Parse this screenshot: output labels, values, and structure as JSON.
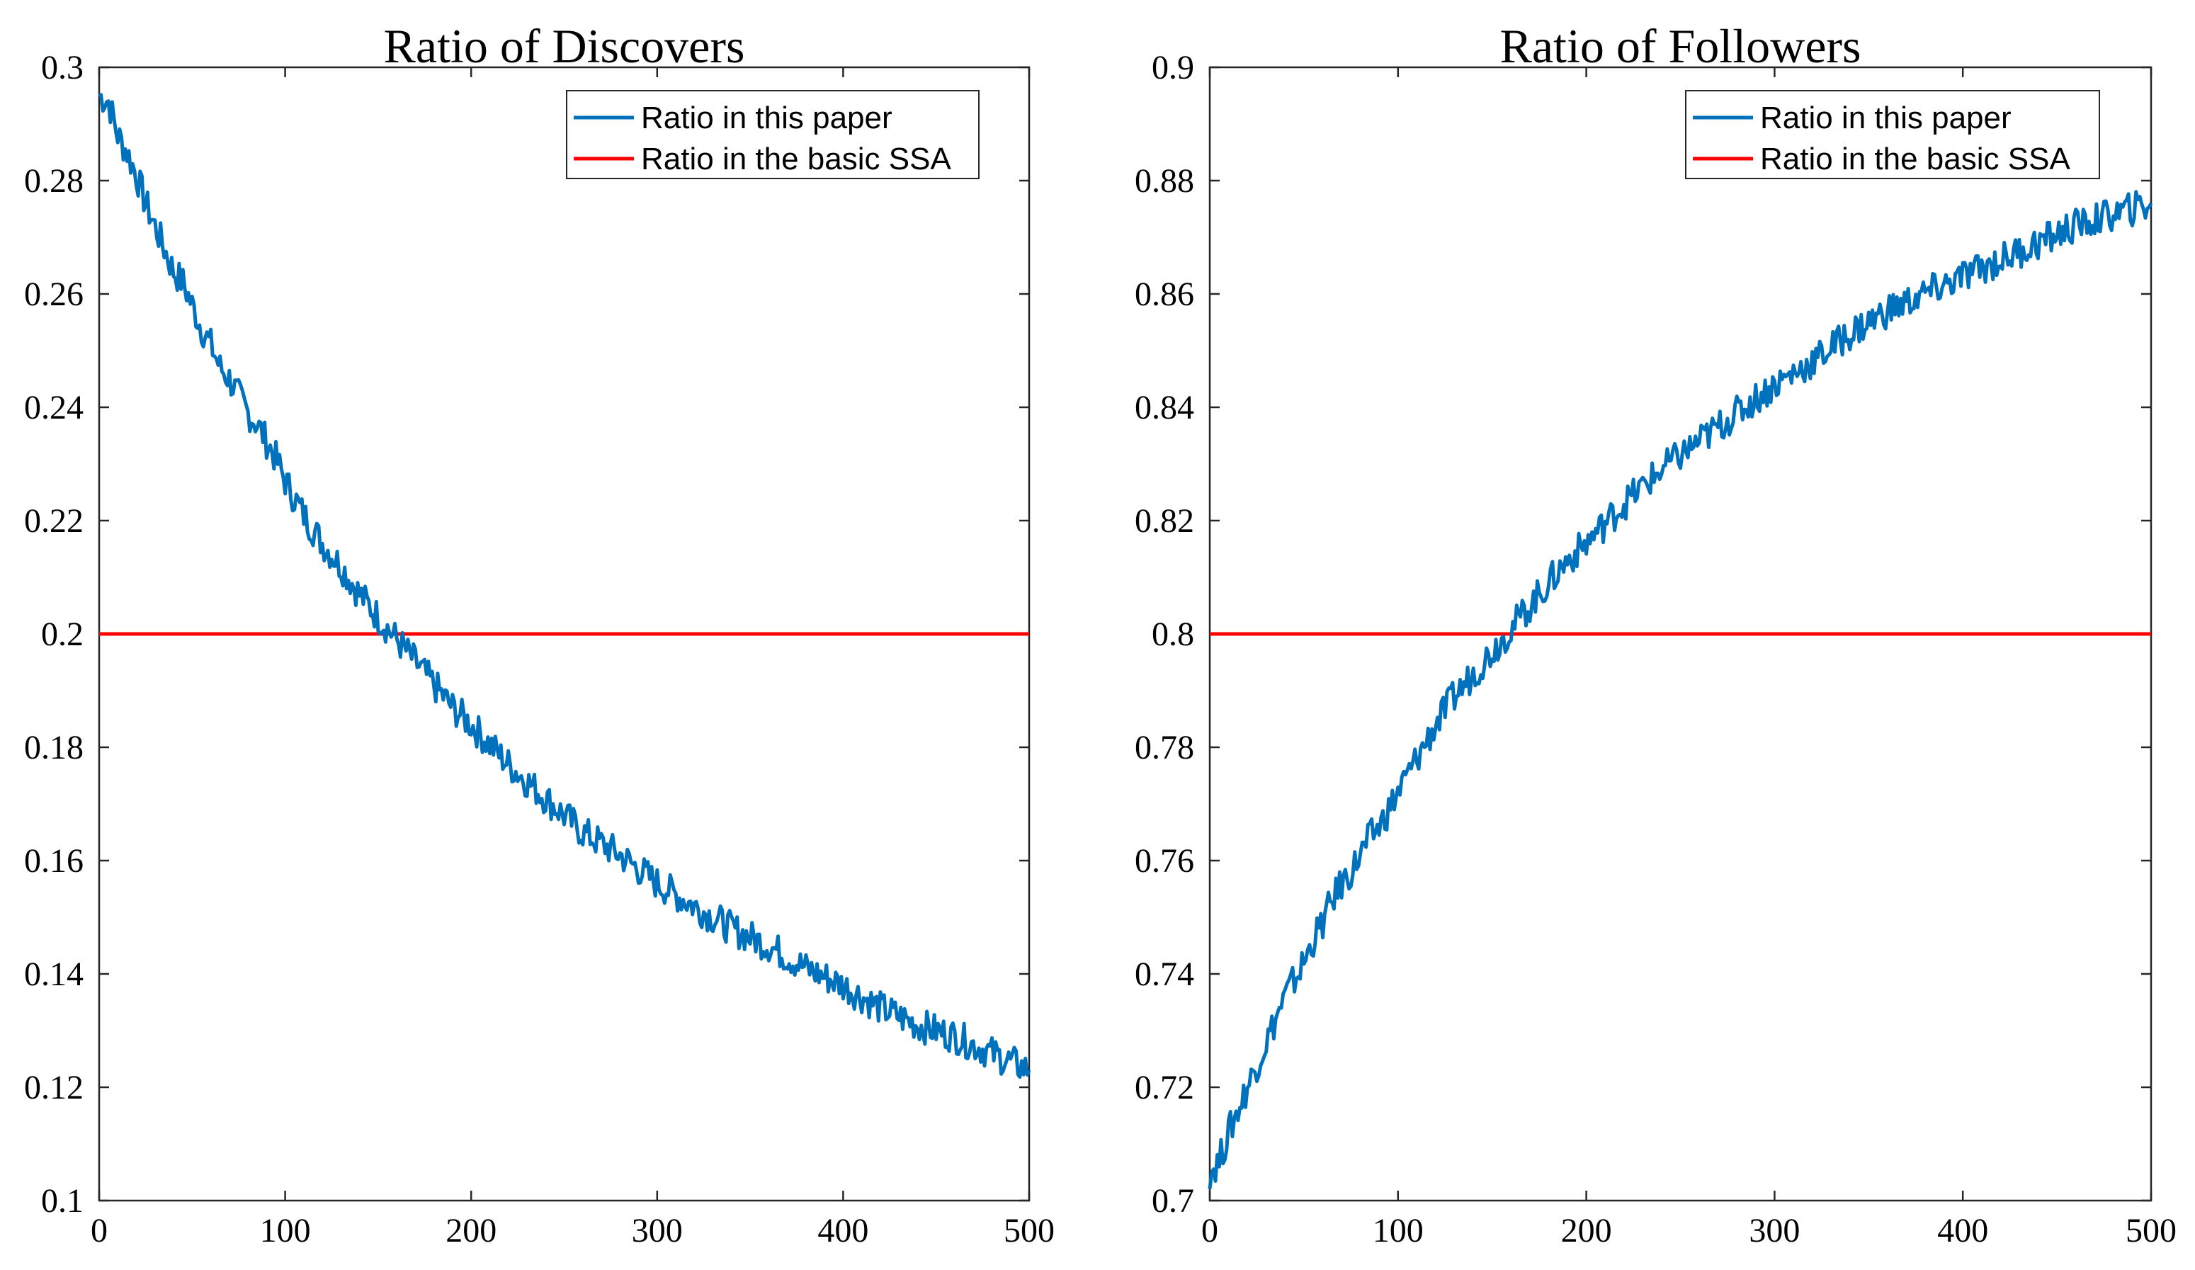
{
  "chart_data": [
    {
      "type": "line",
      "title": "Ratio of Discovers",
      "xlabel": "",
      "ylabel": "",
      "xlim": [
        0,
        500
      ],
      "ylim": [
        0.1,
        0.3
      ],
      "xticks": [
        0,
        100,
        200,
        300,
        400,
        500
      ],
      "yticks": [
        0.1,
        0.12,
        0.14,
        0.16,
        0.18,
        0.2,
        0.22,
        0.24,
        0.26,
        0.28,
        0.3
      ],
      "xtick_labels": [
        "0",
        "100",
        "200",
        "300",
        "400",
        "500"
      ],
      "ytick_labels": [
        "0.1",
        "0.12",
        "0.14",
        "0.16",
        "0.18",
        "0.2",
        "0.22",
        "0.24",
        "0.26",
        "0.28",
        "0.3"
      ],
      "legend_position": "top-right",
      "series": [
        {
          "name": "Ratio in this paper",
          "color": "#0072BD",
          "x": [
            0,
            5,
            10,
            15,
            20,
            25,
            30,
            35,
            40,
            45,
            50,
            55,
            60,
            65,
            70,
            75,
            80,
            85,
            90,
            95,
            100,
            110,
            120,
            130,
            140,
            150,
            160,
            170,
            180,
            190,
            200,
            220,
            240,
            260,
            280,
            300,
            320,
            340,
            360,
            380,
            400,
            420,
            440,
            460,
            480,
            500
          ],
          "values": [
            0.295,
            0.294,
            0.288,
            0.285,
            0.281,
            0.276,
            0.272,
            0.268,
            0.264,
            0.262,
            0.258,
            0.254,
            0.251,
            0.247,
            0.245,
            0.242,
            0.239,
            0.237,
            0.234,
            0.231,
            0.227,
            0.221,
            0.216,
            0.212,
            0.207,
            0.203,
            0.199,
            0.195,
            0.191,
            0.187,
            0.184,
            0.177,
            0.171,
            0.165,
            0.161,
            0.156,
            0.152,
            0.148,
            0.145,
            0.141,
            0.138,
            0.134,
            0.131,
            0.129,
            0.126,
            0.123
          ]
        },
        {
          "name": "Ratio in the basic SSA",
          "color": "#FF0000",
          "x": [
            0,
            500
          ],
          "values": [
            0.2,
            0.2
          ]
        }
      ]
    },
    {
      "type": "line",
      "title": "Ratio of Followers",
      "xlabel": "",
      "ylabel": "",
      "xlim": [
        0,
        500
      ],
      "ylim": [
        0.7,
        0.9
      ],
      "xticks": [
        0,
        100,
        200,
        300,
        400,
        500
      ],
      "yticks": [
        0.7,
        0.72,
        0.74,
        0.76,
        0.78,
        0.8,
        0.82,
        0.84,
        0.86,
        0.88,
        0.9
      ],
      "xtick_labels": [
        "0",
        "100",
        "200",
        "300",
        "400",
        "500"
      ],
      "ytick_labels": [
        "0.7",
        "0.72",
        "0.74",
        "0.76",
        "0.78",
        "0.8",
        "0.82",
        "0.84",
        "0.86",
        "0.88",
        "0.9"
      ],
      "legend_position": "top-right",
      "series": [
        {
          "name": "Ratio in this paper",
          "color": "#0072BD",
          "x": [
            0,
            5,
            10,
            15,
            20,
            25,
            30,
            35,
            40,
            45,
            50,
            55,
            60,
            65,
            70,
            75,
            80,
            85,
            90,
            95,
            100,
            110,
            120,
            130,
            140,
            150,
            160,
            170,
            180,
            190,
            200,
            220,
            240,
            260,
            280,
            300,
            320,
            340,
            360,
            380,
            400,
            420,
            440,
            460,
            480,
            500
          ],
          "values": [
            0.705,
            0.707,
            0.712,
            0.716,
            0.72,
            0.724,
            0.728,
            0.732,
            0.736,
            0.739,
            0.742,
            0.746,
            0.749,
            0.753,
            0.756,
            0.758,
            0.761,
            0.764,
            0.766,
            0.769,
            0.772,
            0.778,
            0.784,
            0.789,
            0.793,
            0.797,
            0.801,
            0.805,
            0.809,
            0.813,
            0.816,
            0.823,
            0.829,
            0.834,
            0.839,
            0.844,
            0.848,
            0.853,
            0.857,
            0.86,
            0.863,
            0.866,
            0.869,
            0.872,
            0.874,
            0.876
          ]
        },
        {
          "name": "Ratio in the basic SSA",
          "color": "#FF0000",
          "x": [
            0,
            500
          ],
          "values": [
            0.8,
            0.8
          ]
        }
      ]
    }
  ]
}
